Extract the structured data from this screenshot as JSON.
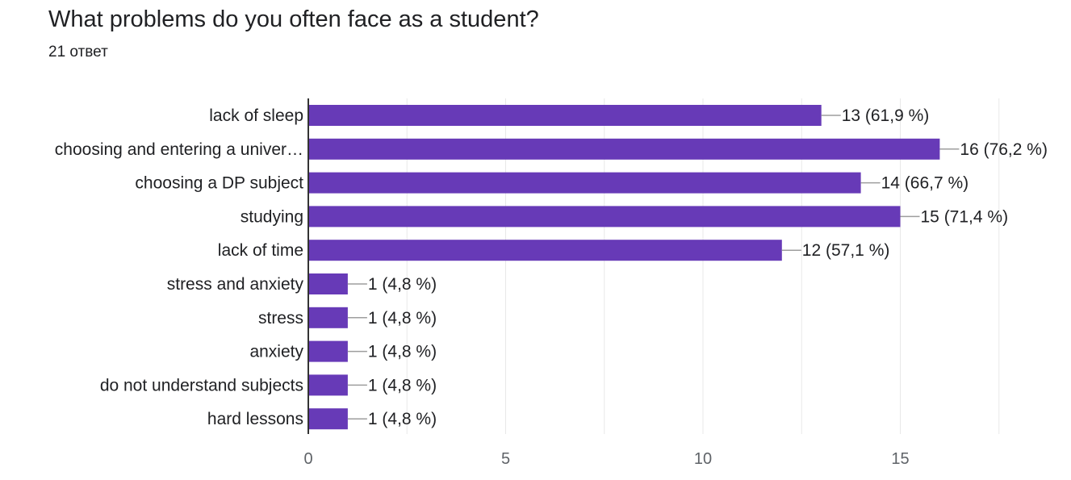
{
  "header": {
    "title": "What problems do you often face as a student?",
    "response_count": "21 ответ"
  },
  "chart_data": {
    "type": "bar",
    "orientation": "horizontal",
    "categories": [
      "lack of sleep",
      "choosing and entering a univer…",
      "choosing a DP subject",
      "studying",
      "lack of time",
      "stress and anxiety",
      "stress",
      "anxiety",
      "do not understand subjects",
      "hard lessons"
    ],
    "values": [
      13,
      16,
      14,
      15,
      12,
      1,
      1,
      1,
      1,
      1
    ],
    "data_labels": [
      "13 (61,9 %)",
      "16 (76,2 %)",
      "14 (66,7 %)",
      "15 (71,4 %)",
      "12 (57,1 %)",
      "1 (4,8 %)",
      "1 (4,8 %)",
      "1 (4,8 %)",
      "1 (4,8 %)",
      "1 (4,8 %)"
    ],
    "xticks": [
      0,
      5,
      10,
      15
    ],
    "xlim": [
      0,
      19.3
    ],
    "grid": true,
    "bar_color": "#673ab7",
    "axis_color": "#333333",
    "grid_color": "#e8e8e8"
  }
}
